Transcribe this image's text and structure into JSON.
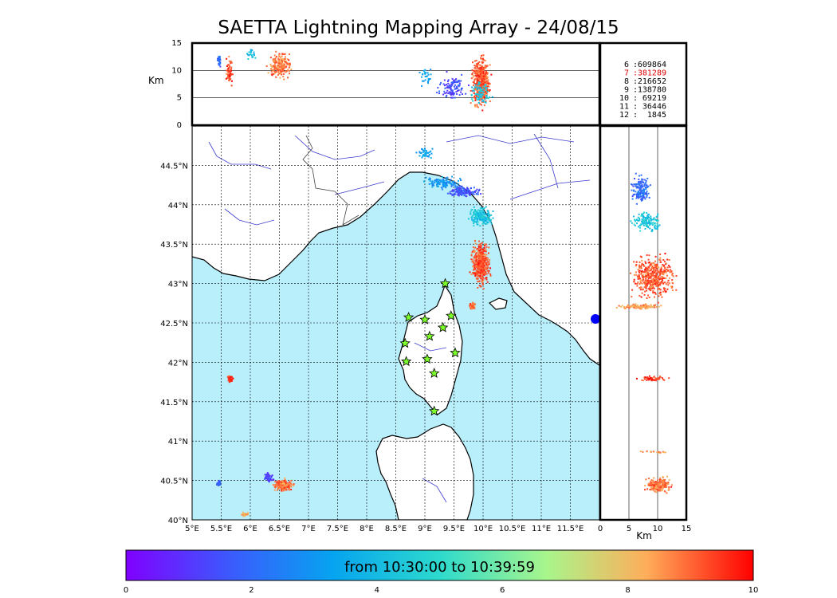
{
  "title": "SAETTA Lightning Mapping Array - 24/08/15",
  "colors": {
    "sea": "#b9eefb",
    "land": "#ffffff",
    "river": "#3c3cd0",
    "border": "#444444",
    "station_fill": "#7dff2a",
    "highlight": "#e00000"
  },
  "chart_data": {
    "type": "scatter",
    "map": {
      "lon_ticks": [
        "5°E",
        "5.5°E",
        "6°E",
        "6.5°E",
        "7°E",
        "7.5°E",
        "8°E",
        "8.5°E",
        "9°E",
        "9.5°E",
        "10°E",
        "10.5°E",
        "11°E",
        "11.5°E"
      ],
      "lat_ticks": [
        "40°N",
        "40.5°N",
        "41°N",
        "41.5°N",
        "42°N",
        "42.5°N",
        "43°N",
        "43.5°N",
        "44°N",
        "44.5°N"
      ],
      "xlim": [
        5,
        12
      ],
      "ylim": [
        40,
        45
      ],
      "grid": true
    },
    "altitude_panel": {
      "ylabel": "Km",
      "ylim": [
        0,
        15
      ],
      "ticks": [
        "0",
        "5",
        "10",
        "15"
      ]
    },
    "lat_altitude_panel": {
      "xlabel": "Km",
      "xlim": [
        0,
        15
      ],
      "ticks": [
        "0",
        "5",
        "10",
        "15"
      ]
    },
    "station_counts": [
      {
        "station": "6",
        "count": "609864",
        "highlight": false
      },
      {
        "station": "7",
        "count": "381289",
        "highlight": true
      },
      {
        "station": "8",
        "count": "216652",
        "highlight": false
      },
      {
        "station": "9",
        "count": "138780",
        "highlight": false
      },
      {
        "station": "10",
        "count": "69219",
        "highlight": false
      },
      {
        "station": "11",
        "count": "36446",
        "highlight": false
      },
      {
        "station": "12",
        "count": "1845",
        "highlight": false
      }
    ],
    "stations": [
      {
        "lon": 9.35,
        "lat": 43.0
      },
      {
        "lon": 8.72,
        "lat": 42.57
      },
      {
        "lon": 9.0,
        "lat": 42.54
      },
      {
        "lon": 9.45,
        "lat": 42.59
      },
      {
        "lon": 9.31,
        "lat": 42.44
      },
      {
        "lon": 9.08,
        "lat": 42.33
      },
      {
        "lon": 8.66,
        "lat": 42.24
      },
      {
        "lon": 9.52,
        "lat": 42.12
      },
      {
        "lon": 8.68,
        "lat": 42.01
      },
      {
        "lon": 9.04,
        "lat": 42.04
      },
      {
        "lon": 9.16,
        "lat": 41.86
      },
      {
        "lon": 9.16,
        "lat": 41.38
      }
    ],
    "clusters": [
      {
        "lon": 9.95,
        "lat": 43.25,
        "rlon": 0.2,
        "rlat": 0.35,
        "t": 9.2,
        "n": 420
      },
      {
        "lon": 9.95,
        "lat": 43.87,
        "rlon": 0.25,
        "rlat": 0.15,
        "t": 4.3,
        "n": 200
      },
      {
        "lon": 9.65,
        "lat": 44.18,
        "rlon": 0.35,
        "rlat": 0.08,
        "t": 1.6,
        "n": 160
      },
      {
        "lon": 9.3,
        "lat": 44.28,
        "rlon": 0.4,
        "rlat": 0.1,
        "t": 3.0,
        "n": 110
      },
      {
        "lon": 9.0,
        "lat": 44.65,
        "rlon": 0.2,
        "rlat": 0.1,
        "t": 3.4,
        "n": 40
      },
      {
        "lon": 9.8,
        "lat": 42.73,
        "rlon": 0.06,
        "rlat": 0.06,
        "t": 9.0,
        "n": 40
      },
      {
        "lon": 5.65,
        "lat": 41.8,
        "rlon": 0.07,
        "rlat": 0.05,
        "t": 9.4,
        "n": 50
      },
      {
        "lon": 6.55,
        "lat": 40.45,
        "rlon": 0.22,
        "rlat": 0.1,
        "t": 8.9,
        "n": 190
      },
      {
        "lon": 6.3,
        "lat": 40.55,
        "rlon": 0.12,
        "rlat": 0.08,
        "t": 1.2,
        "n": 40
      },
      {
        "lon": 5.45,
        "lat": 40.48,
        "rlon": 0.05,
        "rlat": 0.05,
        "t": 2.0,
        "n": 30
      },
      {
        "lon": 5.9,
        "lat": 40.08,
        "rlon": 0.08,
        "rlat": 0.04,
        "t": 8.0,
        "n": 30
      }
    ],
    "altitude_clusters": [
      {
        "lon": 5.45,
        "alt": 12,
        "rlon": 0.05,
        "ralt": 1.5,
        "t": 2.0,
        "n": 30
      },
      {
        "lon": 5.62,
        "alt": 10,
        "rlon": 0.07,
        "ralt": 3,
        "t": 9.4,
        "n": 60
      },
      {
        "lon": 6.0,
        "alt": 13,
        "rlon": 0.1,
        "ralt": 1.5,
        "t": 4.0,
        "n": 20
      },
      {
        "lon": 6.5,
        "alt": 11,
        "rlon": 0.25,
        "ralt": 3,
        "t": 8.9,
        "n": 200
      },
      {
        "lon": 9.0,
        "alt": 9,
        "rlon": 0.2,
        "ralt": 2,
        "t": 3.4,
        "n": 30
      },
      {
        "lon": 9.45,
        "alt": 7,
        "rlon": 0.3,
        "ralt": 3,
        "t": 1.5,
        "n": 110
      },
      {
        "lon": 9.95,
        "alt": 8,
        "rlon": 0.2,
        "ralt": 6,
        "t": 9.2,
        "n": 450
      },
      {
        "lon": 9.95,
        "alt": 6,
        "rlon": 0.25,
        "ralt": 3,
        "t": 4.3,
        "n": 80
      }
    ],
    "lat_alt_clusters": [
      {
        "alt": 7,
        "lat": 44.2,
        "ralt": 2,
        "rlat": 0.25,
        "t": 2.0,
        "n": 150
      },
      {
        "alt": 8,
        "lat": 43.8,
        "ralt": 3,
        "rlat": 0.15,
        "t": 4.3,
        "n": 150
      },
      {
        "alt": 9,
        "lat": 43.1,
        "ralt": 5,
        "rlat": 0.35,
        "t": 9.2,
        "n": 420
      },
      {
        "alt": 7,
        "lat": 42.72,
        "ralt": 5,
        "rlat": 0.04,
        "t": 8.5,
        "n": 100
      },
      {
        "alt": 9,
        "lat": 41.8,
        "ralt": 3,
        "rlat": 0.04,
        "t": 9.4,
        "n": 60
      },
      {
        "alt": 9,
        "lat": 40.87,
        "ralt": 4,
        "rlat": 0.02,
        "t": 8.5,
        "n": 20
      },
      {
        "alt": 10,
        "lat": 40.45,
        "ralt": 3,
        "rlat": 0.12,
        "t": 8.9,
        "n": 200
      }
    ],
    "colorbar": {
      "label": "from 10:30:00 to 10:39:59",
      "ticks": [
        "0",
        "2",
        "4",
        "6",
        "8",
        "10"
      ],
      "range": [
        0,
        10
      ],
      "colormap": "rainbow"
    }
  }
}
